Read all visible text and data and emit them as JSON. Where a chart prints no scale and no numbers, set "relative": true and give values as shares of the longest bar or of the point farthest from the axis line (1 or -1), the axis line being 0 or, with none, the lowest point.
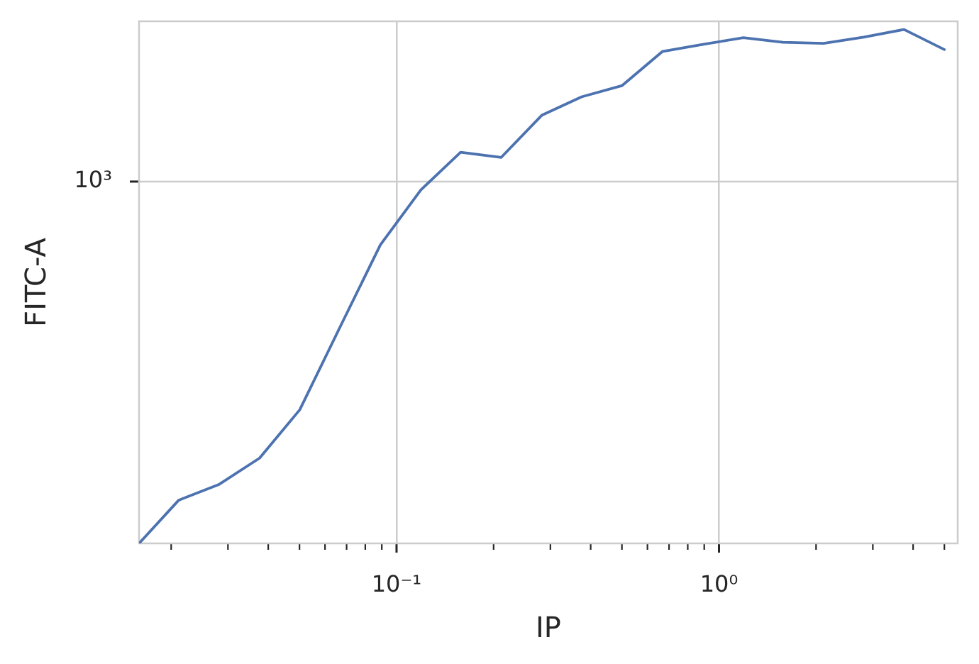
{
  "chart_data": {
    "type": "line",
    "xlabel": "IP",
    "ylabel": "FITC-A",
    "log": "x",
    "grid": true,
    "relative": true,
    "color": "#4c72b0",
    "x": [
      0.0159,
      0.0211,
      0.0282,
      0.0376,
      0.0501,
      0.0668,
      0.0891,
      0.119,
      0.158,
      0.211,
      0.282,
      0.375,
      0.501,
      0.667,
      0.89,
      1.19,
      1.58,
      2.11,
      2.81,
      3.75,
      5
    ],
    "values": [
      0,
      0.084,
      0.115,
      0.166,
      0.26,
      0.421,
      0.581,
      0.688,
      0.761,
      0.751,
      0.833,
      0.869,
      0.891,
      0.957,
      0.971,
      0.984,
      0.975,
      0.973,
      0.985,
      1,
      0.961
    ],
    "xlim": [
      0.0159,
      5.5
    ],
    "xticks": [
      {
        "value": 0.02,
        "label": null
      },
      {
        "value": 0.03,
        "label": null
      },
      {
        "value": 0.04,
        "label": null
      },
      {
        "value": 0.05,
        "label": null
      },
      {
        "value": 0.06,
        "label": null
      },
      {
        "value": 0.07,
        "label": null
      },
      {
        "value": 0.08,
        "label": null
      },
      {
        "value": 0.09,
        "label": null
      },
      {
        "value": 0.1,
        "label": "10⁻¹"
      },
      {
        "value": 0.2,
        "label": null
      },
      {
        "value": 0.3,
        "label": null
      },
      {
        "value": 0.4,
        "label": null
      },
      {
        "value": 0.5,
        "label": null
      },
      {
        "value": 0.6,
        "label": null
      },
      {
        "value": 0.7,
        "label": null
      },
      {
        "value": 0.8,
        "label": null
      },
      {
        "value": 0.9,
        "label": null
      },
      {
        "value": 1,
        "label": "10⁰"
      },
      {
        "value": 2,
        "label": null
      },
      {
        "value": 3,
        "label": null
      },
      {
        "value": 4,
        "label": null
      },
      {
        "value": 5,
        "label": null
      }
    ],
    "annotations": [
      "10³"
    ]
  }
}
